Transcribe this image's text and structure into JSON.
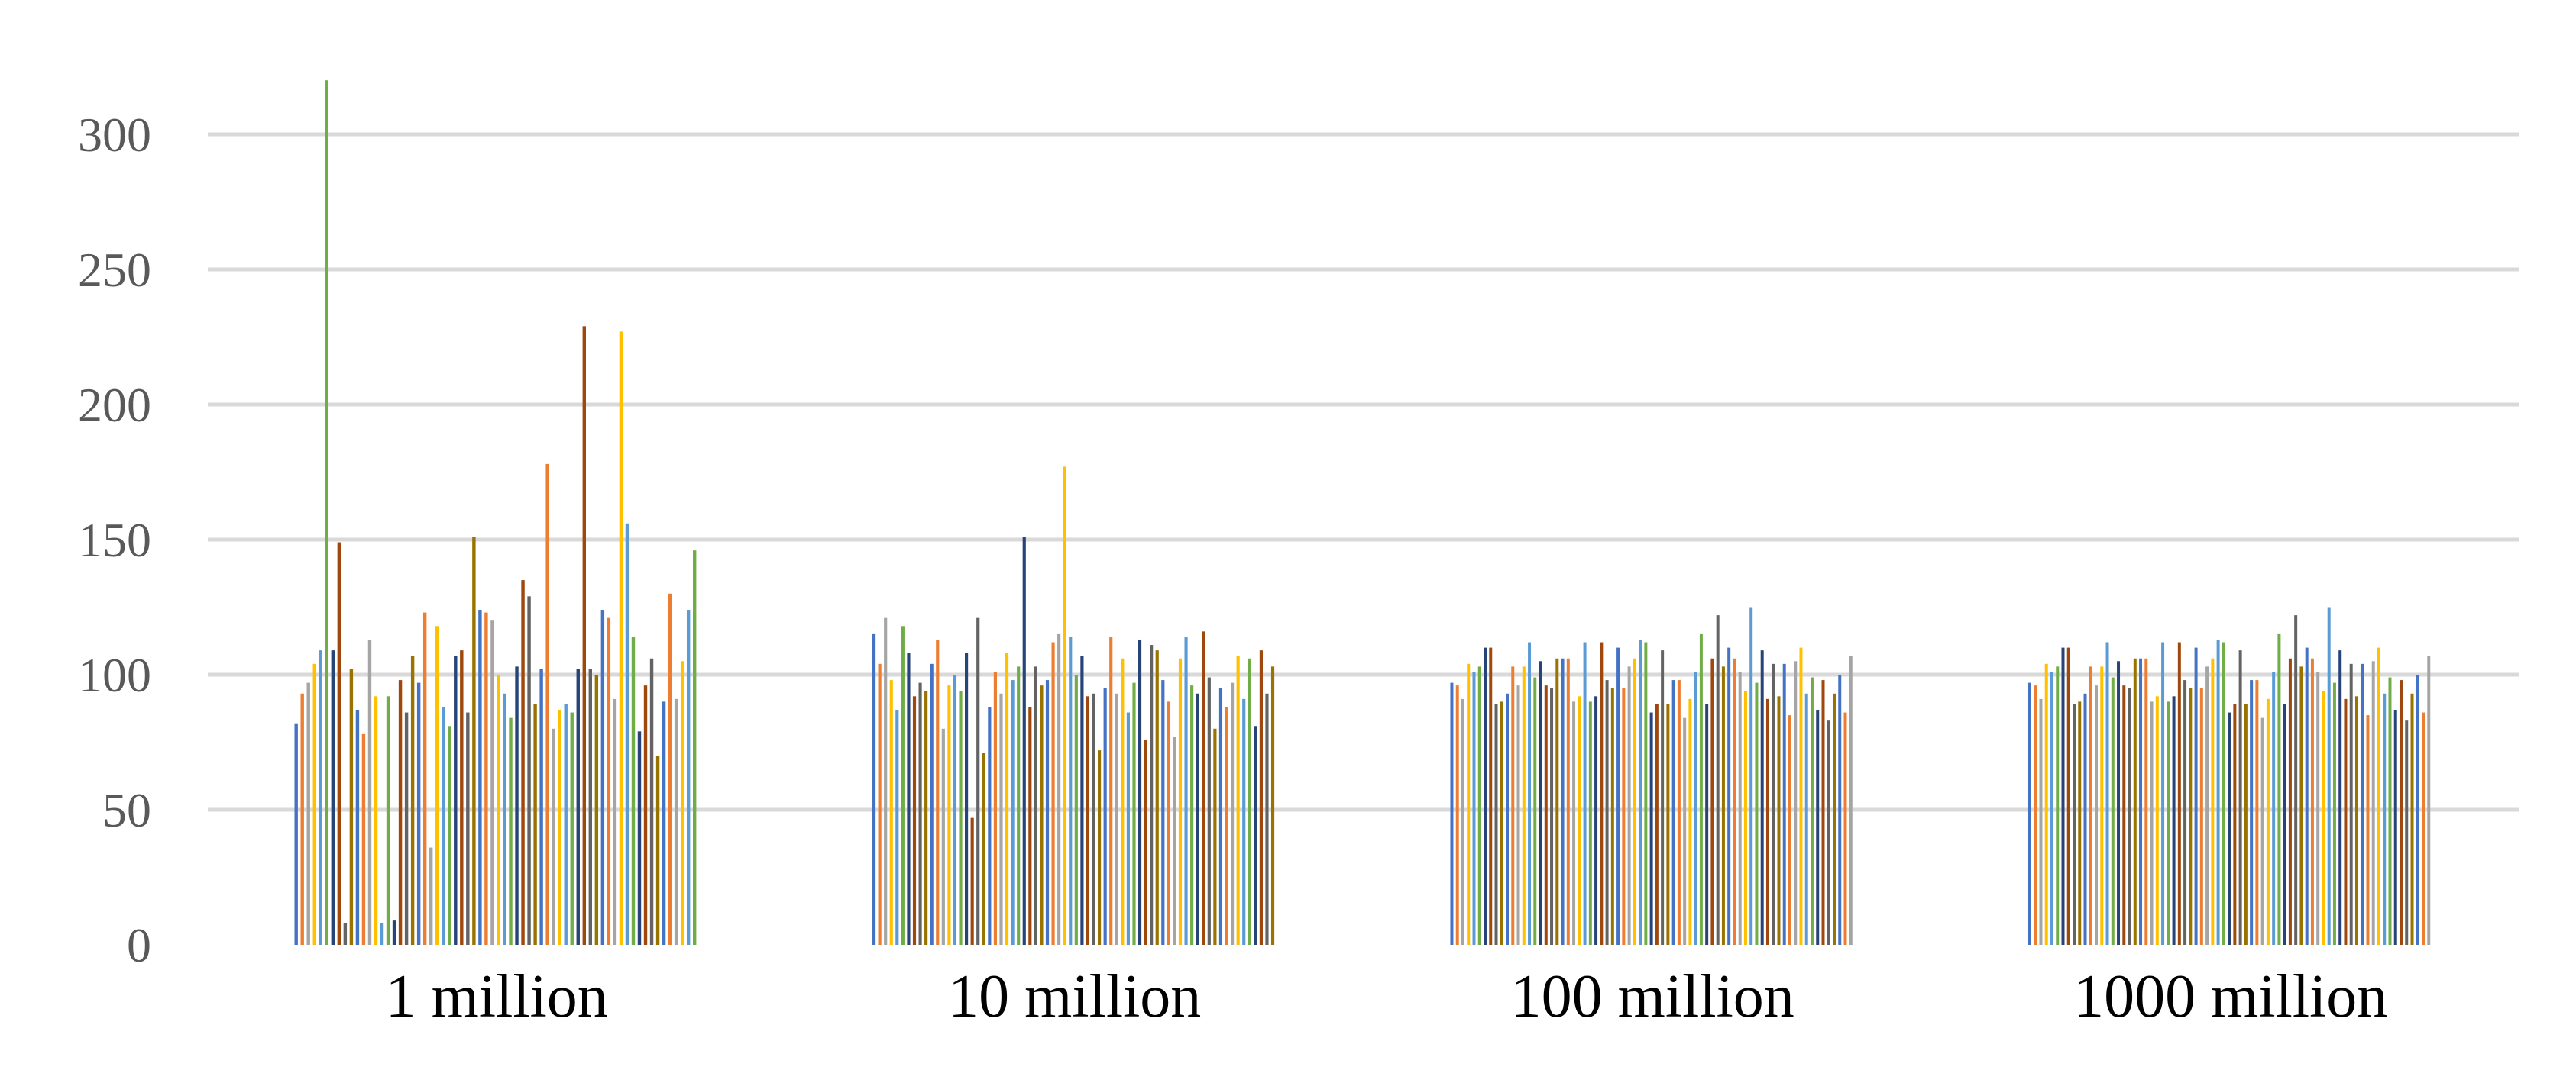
{
  "chart_data": {
    "type": "bar",
    "title": "",
    "xlabel": "",
    "ylabel": "",
    "ylim": [
      0,
      300
    ],
    "yticks": [
      0,
      50,
      100,
      150,
      200,
      250,
      300
    ],
    "grid": true,
    "legend": "none",
    "palette": [
      "#4472c4",
      "#ed7d31",
      "#a5a5a5",
      "#ffc000",
      "#5b9bd5",
      "#70ad47",
      "#264478",
      "#9e480e",
      "#636363",
      "#997300"
    ],
    "categories": [
      "1 million",
      "10 million",
      "100 million",
      "1000 million"
    ],
    "groups": [
      [
        82,
        93,
        97,
        104,
        109,
        320,
        109,
        149,
        8,
        102,
        87,
        78,
        113,
        92,
        8,
        92,
        9,
        98,
        86,
        107,
        97,
        123,
        36,
        118,
        88,
        81,
        107,
        109,
        86,
        151,
        124,
        123,
        120,
        100,
        93,
        84,
        103,
        135,
        129,
        89,
        102,
        178,
        80,
        87,
        89,
        86,
        102,
        229,
        102,
        100,
        124,
        121,
        91,
        227,
        156,
        114,
        79,
        96,
        106,
        70,
        90,
        130,
        91,
        105,
        124,
        146
      ],
      [
        115,
        104,
        121,
        98,
        87,
        118,
        108,
        92,
        97,
        94,
        104,
        113,
        80,
        96,
        100,
        94,
        108,
        47,
        121,
        71,
        88,
        101,
        93,
        108,
        98,
        103,
        151,
        88,
        103,
        96,
        98,
        112,
        115,
        177,
        114,
        100,
        107,
        92,
        93,
        72,
        95,
        114,
        93,
        106,
        86,
        97,
        113,
        76,
        111,
        109,
        98,
        90,
        77,
        106,
        114,
        96,
        93,
        116,
        99,
        80,
        95,
        88,
        97,
        107,
        91,
        106,
        81,
        109,
        93,
        103
      ],
      [
        97,
        96,
        91,
        104,
        101,
        103,
        110,
        110,
        89,
        90,
        93,
        103,
        96,
        103,
        112,
        99,
        105,
        96,
        95,
        106,
        106,
        106,
        90,
        92,
        112,
        90,
        92,
        112,
        98,
        95,
        110,
        95,
        103,
        106,
        113,
        112,
        86,
        89,
        109,
        89,
        98,
        98,
        84,
        91,
        101,
        115,
        89,
        106,
        122,
        103,
        110,
        106,
        101,
        94,
        125,
        97,
        109,
        91,
        104,
        92,
        104,
        85,
        105,
        110,
        93,
        99,
        87,
        98,
        83,
        93,
        100,
        86,
        107
      ],
      [
        97,
        96,
        91,
        104,
        101,
        103,
        110,
        110,
        89,
        90,
        93,
        103,
        96,
        103,
        112,
        99,
        105,
        96,
        95,
        106,
        106,
        106,
        90,
        92,
        112,
        90,
        92,
        112,
        98,
        95,
        110,
        95,
        103,
        106,
        113,
        112,
        86,
        89,
        109,
        89,
        98,
        98,
        84,
        91,
        101,
        115,
        89,
        106,
        122,
        103,
        110,
        106,
        101,
        94,
        125,
        97,
        109,
        91,
        104,
        92,
        104,
        85,
        105,
        110,
        93,
        99,
        87,
        98,
        83,
        93,
        100,
        86,
        107
      ]
    ]
  }
}
